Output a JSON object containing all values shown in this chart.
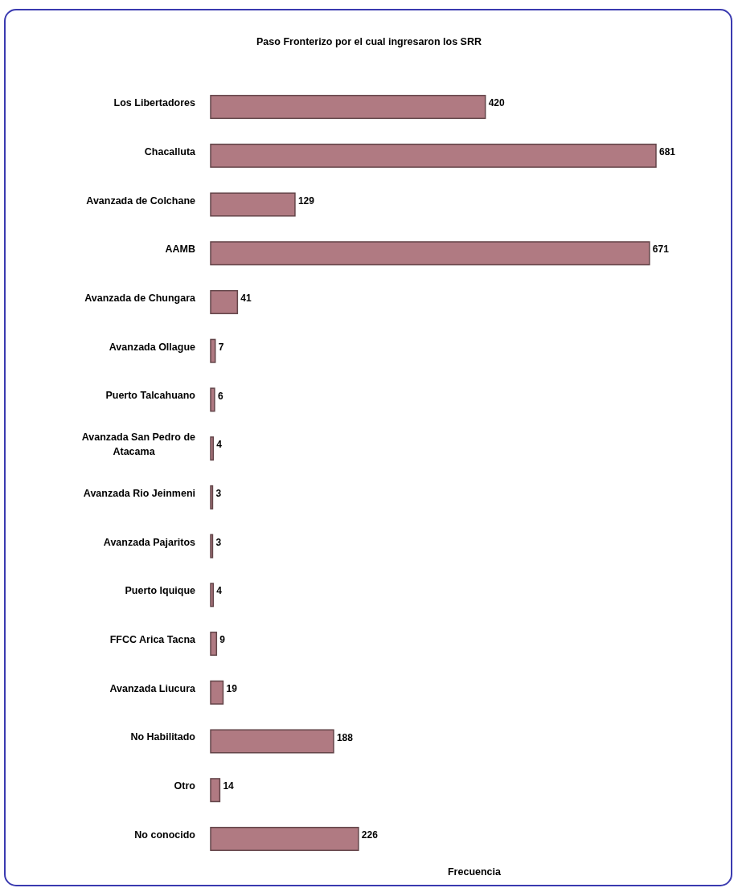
{
  "chart_data": {
    "type": "bar",
    "orientation": "horizontal",
    "title": "Paso Fronterizo por el cual ingresaron los SRR",
    "xlabel": "Frecuencia",
    "categories": [
      "Los Libertadores",
      "Chacalluta",
      "Avanzada de Colchane",
      "AAMB",
      "Avanzada de Chungara",
      "Avanzada Ollague",
      "Puerto Talcahuano",
      "Avanzada San Pedro de Atacama",
      "Avanzada Rio Jeinmeni",
      "Avanzada Pajaritos",
      "Puerto Iquique",
      "FFCC Arica Tacna",
      "Avanzada Liucura",
      "No Habilitado",
      "Otro",
      "No conocido"
    ],
    "values": [
      420,
      681,
      129,
      671,
      41,
      7,
      6,
      4,
      3,
      3,
      4,
      9,
      19,
      188,
      14,
      226
    ],
    "color": "#b07a82",
    "data_labels": true
  }
}
